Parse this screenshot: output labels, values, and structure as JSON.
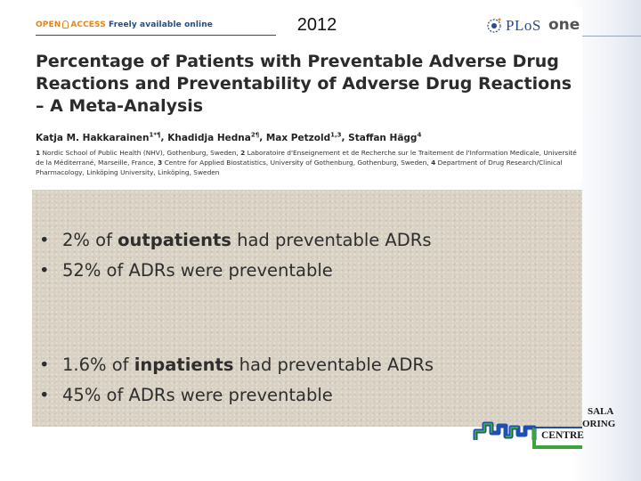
{
  "header": {
    "open_access_label": "OPEN",
    "access_label": "ACCESS",
    "freely_available_label": "Freely available online",
    "year": "2012",
    "journal_plos": "PLoS",
    "journal_one": "one"
  },
  "article": {
    "title": "Percentage of Patients with Preventable Adverse Drug Reactions and Preventability of Adverse Drug Reactions – A Meta-Analysis",
    "authors": [
      {
        "name": "Katja M. Hakkarainen",
        "sup": "1*¶"
      },
      {
        "name": "Khadidja Hedna",
        "sup": "2¶"
      },
      {
        "name": "Max Petzold",
        "sup": "1,3"
      },
      {
        "name": "Staffan Hägg",
        "sup": "4"
      }
    ],
    "affiliations": [
      {
        "num": "1",
        "text": "Nordic School of Public Health (NHV), Gothenburg, Sweden,"
      },
      {
        "num": "2",
        "text": "Laboratoire d'Enseignement et de Recherche sur le Traitement de l'Information Medicale, Université de la Méditerrané, Marseille, France,"
      },
      {
        "num": "3",
        "text": "Centre for Applied Biostatistics, University of Gothenburg, Gothenburg, Sweden,"
      },
      {
        "num": "4",
        "text": "Department of Drug Research/Clinical Pharmacology, Linköping University, Linköping, Sweden"
      }
    ]
  },
  "findings": {
    "bullet_glyph": "•",
    "outpatients": [
      {
        "pre": "2% of ",
        "bold": "outpatients",
        "post": " had preventable ADRs"
      },
      {
        "pre": "52% of ADRs were preventable",
        "bold": "",
        "post": ""
      }
    ],
    "inpatients": [
      {
        "pre": "1.6% of ",
        "bold": "inpatients",
        "post": " had preventable ADRs"
      },
      {
        "pre": "45% of ADRs were preventable",
        "bold": "",
        "post": ""
      }
    ]
  },
  "footer_logo": {
    "line1": "SALA",
    "line2": "ORING",
    "line3": "CENTRE"
  },
  "colors": {
    "oa_orange": "#e0871a",
    "oa_blue": "#1e4d8f",
    "plos_blue": "#2a4a8a",
    "umc_blue": "#1f4fb0",
    "umc_green": "#3aa63a",
    "findings_bg": "#d9d2c4"
  }
}
